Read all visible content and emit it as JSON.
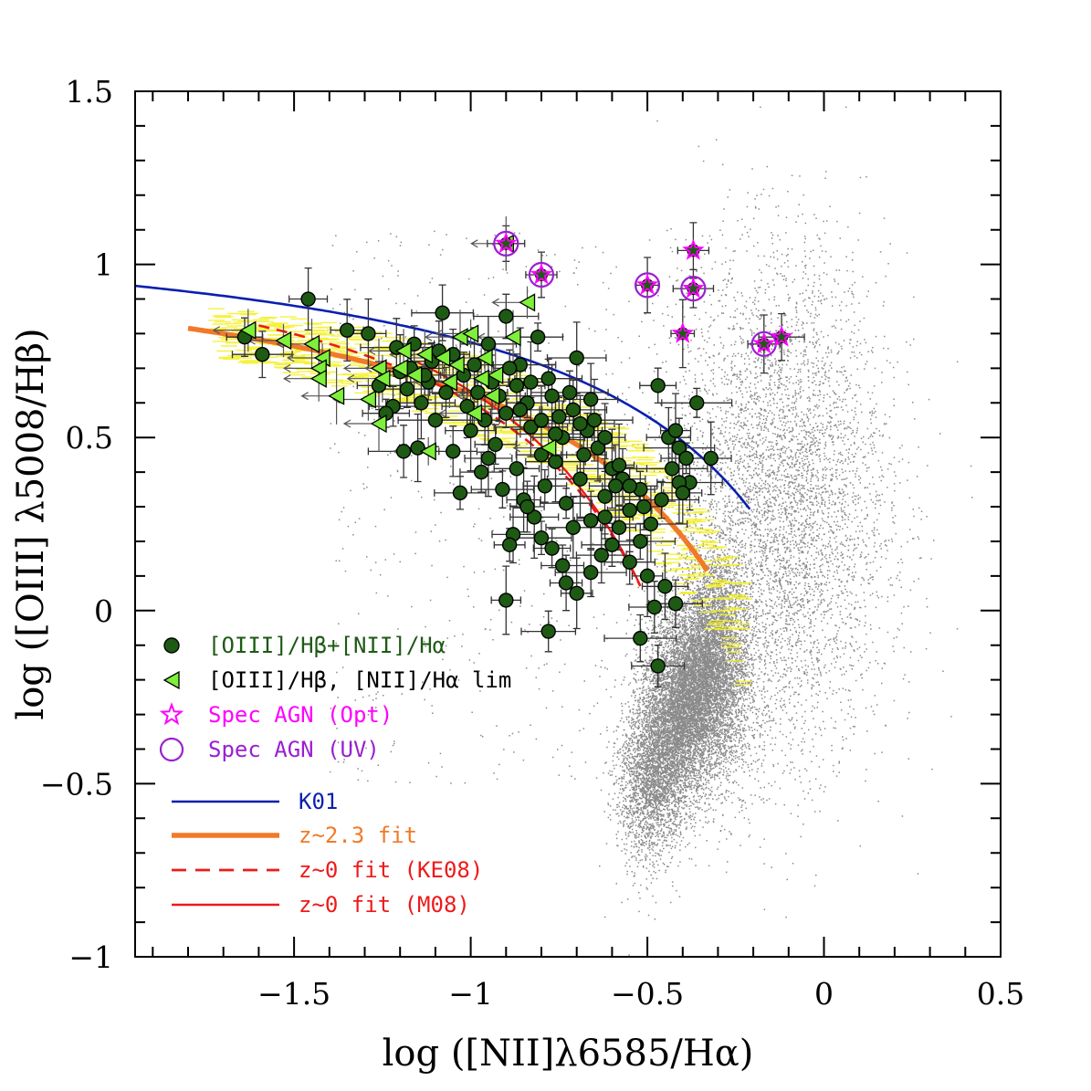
{
  "chart_data": {
    "type": "scatter",
    "xlabel": "log ([NII]λ6585/Hα)",
    "ylabel": "log ([OIII] λ5008/Hβ)",
    "xlim": [
      -1.95,
      0.5
    ],
    "ylim": [
      -1,
      1.5
    ],
    "xticks": [
      -1.5,
      -1,
      -0.5,
      0,
      0.5
    ],
    "xtick_labels": [
      "−1.5",
      "−1",
      "−0.5",
      "0",
      "0.5"
    ],
    "yticks": [
      -1,
      -0.5,
      0,
      0.5,
      1,
      1.5
    ],
    "ytick_labels": [
      "−1",
      "−0.5",
      "0",
      "0.5",
      "1",
      "1.5"
    ],
    "grid": false,
    "legend_position": "lower-left",
    "colors": {
      "detections_fill": "#1e5a14",
      "limits_fill": "#7ef03a",
      "agn_opt": "#ff00ff",
      "agn_uv": "#9a20d0",
      "k01": "#0a1fb0",
      "z23fit": "#f07a28",
      "ke08": "#ee1a1a",
      "m08": "#ee1a1a",
      "sdss": "#8a8a8a",
      "band": "#f4f12a"
    },
    "legend": {
      "detections": "[OIII]/Hβ+[NII]/Hα",
      "limits": "[OIII]/Hβ, [NII]/Hα lim",
      "agn_opt": "Spec AGN (Opt)",
      "agn_uv": "Spec AGN (UV)",
      "k01": "K01",
      "z23fit": "z~2.3 fit",
      "ke08": "z~0 fit (KE08)",
      "m08": "z~0 fit (M08)"
    },
    "series": [
      {
        "name": "[OIII]/Hβ+[NII]/Hα",
        "marker": "filled-circle",
        "points": [
          [
            -1.46,
            0.9
          ],
          [
            -1.59,
            0.74
          ],
          [
            -1.64,
            0.79
          ],
          [
            -1.29,
            0.8
          ],
          [
            -1.35,
            0.81
          ],
          [
            -1.21,
            0.76
          ],
          [
            -1.17,
            0.7
          ],
          [
            -1.12,
            0.66
          ],
          [
            -1.08,
            0.86
          ],
          [
            -1.05,
            0.74
          ],
          [
            -1.02,
            0.68
          ],
          [
            -0.98,
            0.63
          ],
          [
            -0.95,
            0.77
          ],
          [
            -0.9,
            0.85
          ],
          [
            -0.86,
            0.71
          ],
          [
            -0.84,
            0.6
          ],
          [
            -0.81,
            0.79
          ],
          [
            -0.78,
            0.67
          ],
          [
            -0.75,
            0.56
          ],
          [
            -0.7,
            0.73
          ],
          [
            -0.67,
            0.52
          ],
          [
            -0.64,
            0.47
          ],
          [
            -0.6,
            0.41
          ],
          [
            -0.57,
            0.38
          ],
          [
            -0.52,
            0.35
          ],
          [
            -0.47,
            0.65
          ],
          [
            -0.44,
            0.5
          ],
          [
            -0.41,
            0.47
          ],
          [
            -0.38,
            0.37
          ],
          [
            -0.36,
            0.6
          ],
          [
            -0.32,
            0.44
          ],
          [
            -0.42,
            0.52
          ],
          [
            -0.46,
            0.32
          ],
          [
            -0.49,
            0.25
          ],
          [
            -0.52,
            0.2
          ],
          [
            -0.55,
            0.29
          ],
          [
            -0.6,
            0.19
          ],
          [
            -0.63,
            0.16
          ],
          [
            -0.66,
            0.11
          ],
          [
            -0.7,
            0.05
          ],
          [
            -0.73,
            0.08
          ],
          [
            -0.78,
            -0.06
          ],
          [
            -0.9,
            0.03
          ],
          [
            -0.52,
            -0.08
          ],
          [
            -0.48,
            0.01
          ],
          [
            -0.42,
            0.02
          ],
          [
            -0.45,
            0.07
          ],
          [
            -0.5,
            0.1
          ],
          [
            -0.47,
            -0.16
          ],
          [
            -0.88,
            0.22
          ],
          [
            -0.85,
            0.32
          ],
          [
            -0.82,
            0.27
          ],
          [
            -0.79,
            0.36
          ],
          [
            -0.76,
            0.43
          ],
          [
            -0.73,
            0.31
          ],
          [
            -0.69,
            0.38
          ],
          [
            -0.66,
            0.26
          ],
          [
            -0.62,
            0.33
          ],
          [
            -0.58,
            0.24
          ],
          [
            -0.55,
            0.14
          ],
          [
            -1.0,
            0.52
          ],
          [
            -1.05,
            0.46
          ],
          [
            -1.1,
            0.55
          ],
          [
            -1.14,
            0.6
          ],
          [
            -1.18,
            0.64
          ],
          [
            -1.22,
            0.59
          ],
          [
            -1.26,
            0.65
          ],
          [
            -1.15,
            0.47
          ],
          [
            -1.19,
            0.46
          ],
          [
            -1.03,
            0.34
          ],
          [
            -0.97,
            0.4
          ],
          [
            -0.93,
            0.48
          ],
          [
            -0.9,
            0.57
          ],
          [
            -0.87,
            0.65
          ],
          [
            -0.83,
            0.53
          ],
          [
            -0.8,
            0.45
          ],
          [
            -0.77,
            0.62
          ],
          [
            -0.74,
            0.5
          ],
          [
            -0.71,
            0.58
          ],
          [
            -0.68,
            0.45
          ],
          [
            -0.65,
            0.55
          ],
          [
            -0.62,
            0.5
          ],
          [
            -0.58,
            0.42
          ],
          [
            -0.55,
            0.36
          ],
          [
            -0.51,
            0.3
          ],
          [
            -1.07,
            0.63
          ],
          [
            -1.01,
            0.59
          ],
          [
            -0.96,
            0.55
          ],
          [
            -0.92,
            0.62
          ],
          [
            -0.89,
            0.7
          ],
          [
            -0.86,
            0.58
          ],
          [
            -0.83,
            0.66
          ],
          [
            -0.8,
            0.55
          ],
          [
            -0.76,
            0.51
          ],
          [
            -0.72,
            0.63
          ],
          [
            -0.69,
            0.54
          ],
          [
            -0.66,
            0.61
          ],
          [
            -0.95,
            0.44
          ],
          [
            -0.91,
            0.35
          ],
          [
            -0.87,
            0.41
          ],
          [
            -0.84,
            0.3
          ],
          [
            -0.8,
            0.21
          ],
          [
            -0.77,
            0.18
          ],
          [
            -0.74,
            0.13
          ],
          [
            -0.71,
            0.24
          ],
          [
            -0.89,
            0.19
          ],
          [
            -0.41,
            0.37
          ],
          [
            -0.39,
            0.44
          ],
          [
            -0.43,
            0.41
          ],
          [
            -0.4,
            0.34
          ],
          [
            -1.11,
            0.72
          ],
          [
            -1.13,
            0.68
          ],
          [
            -1.09,
            0.75
          ],
          [
            -0.99,
            0.71
          ],
          [
            -0.94,
            0.66
          ],
          [
            -1.24,
            0.57
          ],
          [
            -1.2,
            0.69
          ],
          [
            -1.16,
            0.77
          ],
          [
            -0.62,
            0.27
          ],
          [
            -0.59,
            0.36
          ]
        ]
      },
      {
        "name": "[OIII]/Hβ, [NII]/Hα lim",
        "marker": "left-triangle",
        "points": [
          [
            -1.63,
            0.81
          ],
          [
            -1.53,
            0.78
          ],
          [
            -1.45,
            0.77
          ],
          [
            -1.42,
            0.73
          ],
          [
            -1.43,
            0.7
          ],
          [
            -1.43,
            0.67
          ],
          [
            -1.38,
            0.62
          ],
          [
            -1.29,
            0.61
          ],
          [
            -1.26,
            0.7
          ],
          [
            -1.25,
            0.67
          ],
          [
            -1.26,
            0.54
          ],
          [
            -1.2,
            0.7
          ],
          [
            -1.16,
            0.68
          ],
          [
            -1.13,
            0.74
          ],
          [
            -1.08,
            0.73
          ],
          [
            -1.04,
            0.71
          ],
          [
            -1.03,
            0.79
          ],
          [
            -1.0,
            0.8
          ],
          [
            -0.96,
            0.73
          ],
          [
            -0.93,
            0.68
          ],
          [
            -0.88,
            0.79
          ],
          [
            -0.84,
            0.89
          ],
          [
            -0.9,
            1.06
          ],
          [
            -1.12,
            0.46
          ],
          [
            -1.06,
            0.66
          ],
          [
            -0.99,
            0.57
          ],
          [
            -0.94,
            0.62
          ],
          [
            -0.78,
            0.47
          ],
          [
            -1.19,
            0.75
          ],
          [
            -0.97,
            0.67
          ]
        ]
      },
      {
        "name": "Spec AGN (Opt)",
        "marker": "star",
        "points": [
          [
            -0.9,
            1.06
          ],
          [
            -0.8,
            0.97
          ],
          [
            -0.5,
            0.94
          ],
          [
            -0.37,
            1.04
          ],
          [
            -0.37,
            0.93
          ],
          [
            -0.4,
            0.8
          ],
          [
            -0.17,
            0.77
          ],
          [
            -0.12,
            0.79
          ]
        ]
      },
      {
        "name": "Spec AGN (UV)",
        "marker": "open-circle",
        "points": [
          [
            -0.9,
            1.06
          ],
          [
            -0.8,
            0.97
          ],
          [
            -0.5,
            0.94
          ],
          [
            -0.37,
            0.93
          ],
          [
            -0.17,
            0.77
          ]
        ]
      }
    ]
  }
}
